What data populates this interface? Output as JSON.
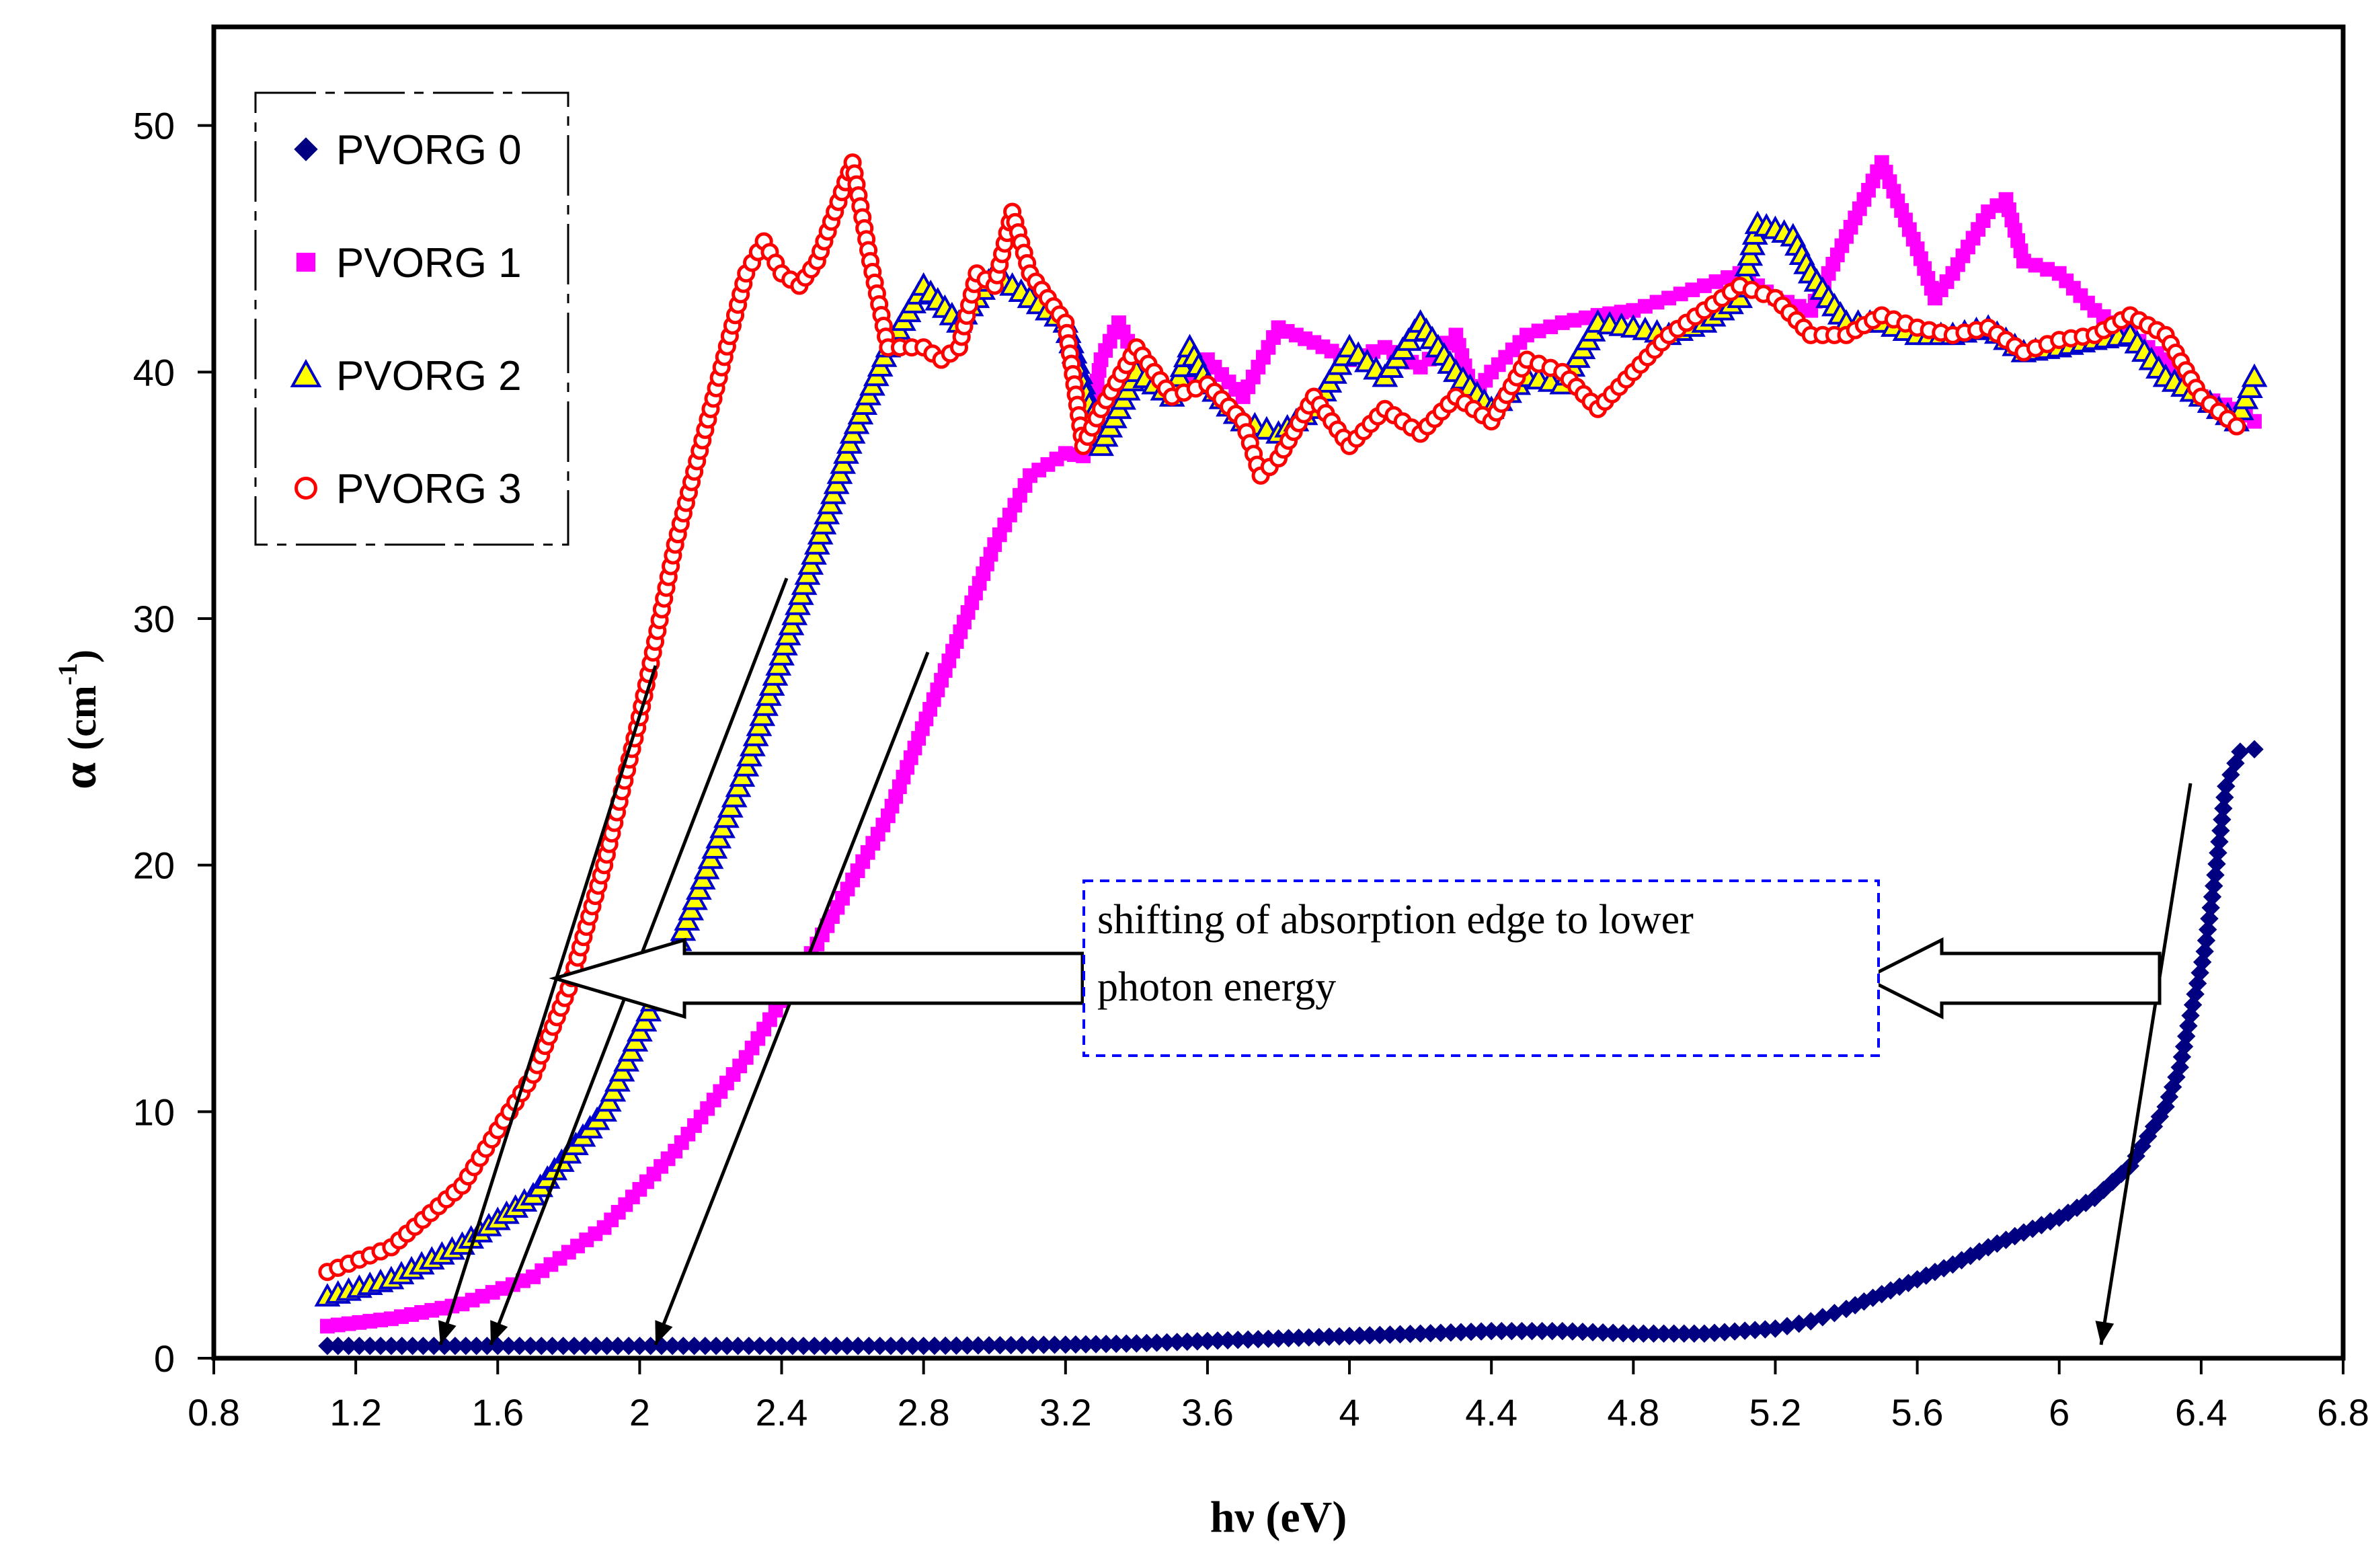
{
  "chart_data": {
    "type": "scatter",
    "title": "",
    "xlabel": "hν  (eV)",
    "ylabel_symbol": "α",
    "ylabel_unit": "(cm",
    "ylabel_exp": "-1",
    "ylabel_close": ")",
    "xlim": [
      0.8,
      6.8
    ],
    "ylim": [
      0,
      54
    ],
    "xticks": [
      0.8,
      1.2,
      1.6,
      2,
      2.4,
      2.8,
      3.2,
      3.6,
      4,
      4.4,
      4.8,
      5.2,
      5.6,
      6,
      6.4,
      6.8
    ],
    "xtick_labels": [
      "0.8",
      "1.2",
      "1.6",
      "2",
      "2.4",
      "2.8",
      "3.2",
      "3.6",
      "4",
      "4.4",
      "4.8",
      "5.2",
      "5.6",
      "6",
      "6.4",
      "6.8"
    ],
    "yticks": [
      0,
      10,
      20,
      30,
      40,
      50
    ],
    "ytick_labels": [
      "0",
      "10",
      "20",
      "30",
      "40",
      "50"
    ],
    "grid": false,
    "legend_position": "top-left",
    "series": [
      {
        "name": "PVORG 0",
        "marker": "diamond",
        "color": "#000080",
        "points": [
          [
            1.12,
            0.5
          ],
          [
            1.3,
            0.5
          ],
          [
            1.6,
            0.5
          ],
          [
            2.0,
            0.5
          ],
          [
            2.4,
            0.5
          ],
          [
            2.8,
            0.5
          ],
          [
            3.2,
            0.55
          ],
          [
            3.4,
            0.6
          ],
          [
            3.6,
            0.7
          ],
          [
            3.8,
            0.8
          ],
          [
            4.0,
            0.9
          ],
          [
            4.2,
            1.0
          ],
          [
            4.4,
            1.1
          ],
          [
            4.6,
            1.1
          ],
          [
            4.8,
            1.0
          ],
          [
            5.0,
            1.0
          ],
          [
            5.2,
            1.2
          ],
          [
            5.3,
            1.5
          ],
          [
            5.4,
            2.0
          ],
          [
            5.5,
            2.6
          ],
          [
            5.6,
            3.2
          ],
          [
            5.7,
            3.8
          ],
          [
            5.8,
            4.5
          ],
          [
            5.9,
            5.1
          ],
          [
            6.0,
            5.7
          ],
          [
            6.1,
            6.5
          ],
          [
            6.2,
            7.8
          ],
          [
            6.25,
            9.0
          ],
          [
            6.3,
            10.2
          ],
          [
            6.34,
            11.8
          ],
          [
            6.37,
            13.9
          ],
          [
            6.41,
            16.5
          ],
          [
            6.44,
            19.6
          ],
          [
            6.47,
            23.2
          ],
          [
            6.51,
            24.6
          ],
          [
            6.55,
            24.7
          ]
        ]
      },
      {
        "name": "PVORG 1",
        "marker": "square",
        "color": "#ff00ff",
        "points": [
          [
            1.12,
            1.3
          ],
          [
            1.3,
            1.6
          ],
          [
            1.5,
            2.2
          ],
          [
            1.7,
            3.3
          ],
          [
            1.9,
            5.3
          ],
          [
            2.1,
            8.4
          ],
          [
            2.3,
            12.2
          ],
          [
            2.5,
            16.8
          ],
          [
            2.7,
            22.0
          ],
          [
            2.85,
            27.5
          ],
          [
            3.0,
            33.0
          ],
          [
            3.1,
            35.8
          ],
          [
            3.2,
            36.7
          ],
          [
            3.25,
            36.6
          ],
          [
            3.3,
            40.5
          ],
          [
            3.35,
            42.0
          ],
          [
            3.4,
            40.5
          ],
          [
            3.5,
            39.0
          ],
          [
            3.6,
            40.5
          ],
          [
            3.7,
            39.0
          ],
          [
            3.8,
            41.8
          ],
          [
            3.9,
            41.2
          ],
          [
            4.0,
            40.5
          ],
          [
            4.1,
            41.0
          ],
          [
            4.2,
            40.2
          ],
          [
            4.3,
            41.5
          ],
          [
            4.35,
            39.0
          ],
          [
            4.4,
            40.0
          ],
          [
            4.5,
            41.5
          ],
          [
            4.6,
            42.0
          ],
          [
            4.7,
            42.3
          ],
          [
            4.8,
            42.5
          ],
          [
            4.9,
            43.0
          ],
          [
            5.0,
            43.5
          ],
          [
            5.1,
            44.0
          ],
          [
            5.2,
            43.0
          ],
          [
            5.3,
            42.5
          ],
          [
            5.4,
            45.5
          ],
          [
            5.5,
            48.5
          ],
          [
            5.6,
            45.0
          ],
          [
            5.65,
            43.0
          ],
          [
            5.7,
            44.0
          ],
          [
            5.8,
            46.5
          ],
          [
            5.85,
            47.0
          ],
          [
            5.9,
            44.5
          ],
          [
            6.0,
            44.0
          ],
          [
            6.1,
            42.5
          ],
          [
            6.2,
            41.5
          ],
          [
            6.3,
            40.5
          ],
          [
            6.4,
            39.0
          ],
          [
            6.5,
            38.5
          ],
          [
            6.55,
            38.0
          ]
        ]
      },
      {
        "name": "PVORG 2",
        "marker": "triangle",
        "color": "#0000cc",
        "fill": "#ffff00",
        "points": [
          [
            1.12,
            2.5
          ],
          [
            1.3,
            3.2
          ],
          [
            1.5,
            4.6
          ],
          [
            1.7,
            6.6
          ],
          [
            1.9,
            10.0
          ],
          [
            2.1,
            16.5
          ],
          [
            2.3,
            24.0
          ],
          [
            2.5,
            33.0
          ],
          [
            2.6,
            37.5
          ],
          [
            2.7,
            41.0
          ],
          [
            2.8,
            43.5
          ],
          [
            2.9,
            42.0
          ],
          [
            3.0,
            44.0
          ],
          [
            3.1,
            43.0
          ],
          [
            3.2,
            42.0
          ],
          [
            3.3,
            37.0
          ],
          [
            3.4,
            40.0
          ],
          [
            3.5,
            39.0
          ],
          [
            3.55,
            41.0
          ],
          [
            3.6,
            39.5
          ],
          [
            3.7,
            38.0
          ],
          [
            3.8,
            37.5
          ],
          [
            3.9,
            38.5
          ],
          [
            4.0,
            41.0
          ],
          [
            4.1,
            39.8
          ],
          [
            4.2,
            42.0
          ],
          [
            4.3,
            40.0
          ],
          [
            4.4,
            38.5
          ],
          [
            4.5,
            39.8
          ],
          [
            4.6,
            39.5
          ],
          [
            4.7,
            42.0
          ],
          [
            4.8,
            41.8
          ],
          [
            4.9,
            41.5
          ],
          [
            5.0,
            42.0
          ],
          [
            5.1,
            43.0
          ],
          [
            5.15,
            46.0
          ],
          [
            5.2,
            45.8
          ],
          [
            5.25,
            45.5
          ],
          [
            5.3,
            44.0
          ],
          [
            5.4,
            42.0
          ],
          [
            5.5,
            42.0
          ],
          [
            5.6,
            41.5
          ],
          [
            5.7,
            41.5
          ],
          [
            5.8,
            41.8
          ],
          [
            5.9,
            40.8
          ],
          [
            6.0,
            41.0
          ],
          [
            6.1,
            41.3
          ],
          [
            6.2,
            41.5
          ],
          [
            6.3,
            39.8
          ],
          [
            6.4,
            39.0
          ],
          [
            6.5,
            38.0
          ],
          [
            6.55,
            39.8
          ]
        ]
      },
      {
        "name": "PVORG 3",
        "marker": "circle",
        "color": "#ff0000",
        "points": [
          [
            1.12,
            3.5
          ],
          [
            1.3,
            4.5
          ],
          [
            1.5,
            7.0
          ],
          [
            1.7,
            11.5
          ],
          [
            1.8,
            15.0
          ],
          [
            1.9,
            20.0
          ],
          [
            2.0,
            26.0
          ],
          [
            2.1,
            33.0
          ],
          [
            2.2,
            38.5
          ],
          [
            2.3,
            44.0
          ],
          [
            2.35,
            45.3
          ],
          [
            2.4,
            44.0
          ],
          [
            2.45,
            43.5
          ],
          [
            2.5,
            44.5
          ],
          [
            2.55,
            46.5
          ],
          [
            2.6,
            48.5
          ],
          [
            2.65,
            44.5
          ],
          [
            2.7,
            41.0
          ],
          [
            2.8,
            41.0
          ],
          [
            2.85,
            40.5
          ],
          [
            2.9,
            41.0
          ],
          [
            2.95,
            44.0
          ],
          [
            3.0,
            43.5
          ],
          [
            3.05,
            46.5
          ],
          [
            3.1,
            44.0
          ],
          [
            3.15,
            43.0
          ],
          [
            3.2,
            42.0
          ],
          [
            3.25,
            37.0
          ],
          [
            3.3,
            38.5
          ],
          [
            3.4,
            41.0
          ],
          [
            3.5,
            39.0
          ],
          [
            3.6,
            39.5
          ],
          [
            3.7,
            38.0
          ],
          [
            3.75,
            35.8
          ],
          [
            3.8,
            36.5
          ],
          [
            3.9,
            39.0
          ],
          [
            4.0,
            37.0
          ],
          [
            4.1,
            38.5
          ],
          [
            4.2,
            37.5
          ],
          [
            4.3,
            39.0
          ],
          [
            4.4,
            38.0
          ],
          [
            4.5,
            40.5
          ],
          [
            4.6,
            40.0
          ],
          [
            4.7,
            38.5
          ],
          [
            4.8,
            40.0
          ],
          [
            4.9,
            41.5
          ],
          [
            5.0,
            42.5
          ],
          [
            5.1,
            43.5
          ],
          [
            5.2,
            43.0
          ],
          [
            5.3,
            41.5
          ],
          [
            5.4,
            41.5
          ],
          [
            5.5,
            42.3
          ],
          [
            5.6,
            41.8
          ],
          [
            5.7,
            41.5
          ],
          [
            5.8,
            41.8
          ],
          [
            5.9,
            40.8
          ],
          [
            6.0,
            41.3
          ],
          [
            6.1,
            41.5
          ],
          [
            6.2,
            42.3
          ],
          [
            6.3,
            41.5
          ],
          [
            6.4,
            39.0
          ],
          [
            6.5,
            37.8
          ]
        ]
      }
    ],
    "annotations": [
      {
        "type": "text-box",
        "lines": [
          "shifting of absorption edge to lower",
          "photon energy"
        ]
      },
      {
        "type": "block-arrow",
        "direction": "left",
        "label": "left block arrow"
      },
      {
        "type": "block-arrow",
        "direction": "left",
        "label": "right block arrow"
      },
      {
        "type": "edge-extrapolation-lines",
        "intercepts_ev": [
          1.45,
          1.61,
          2.08,
          6.22
        ]
      }
    ]
  }
}
